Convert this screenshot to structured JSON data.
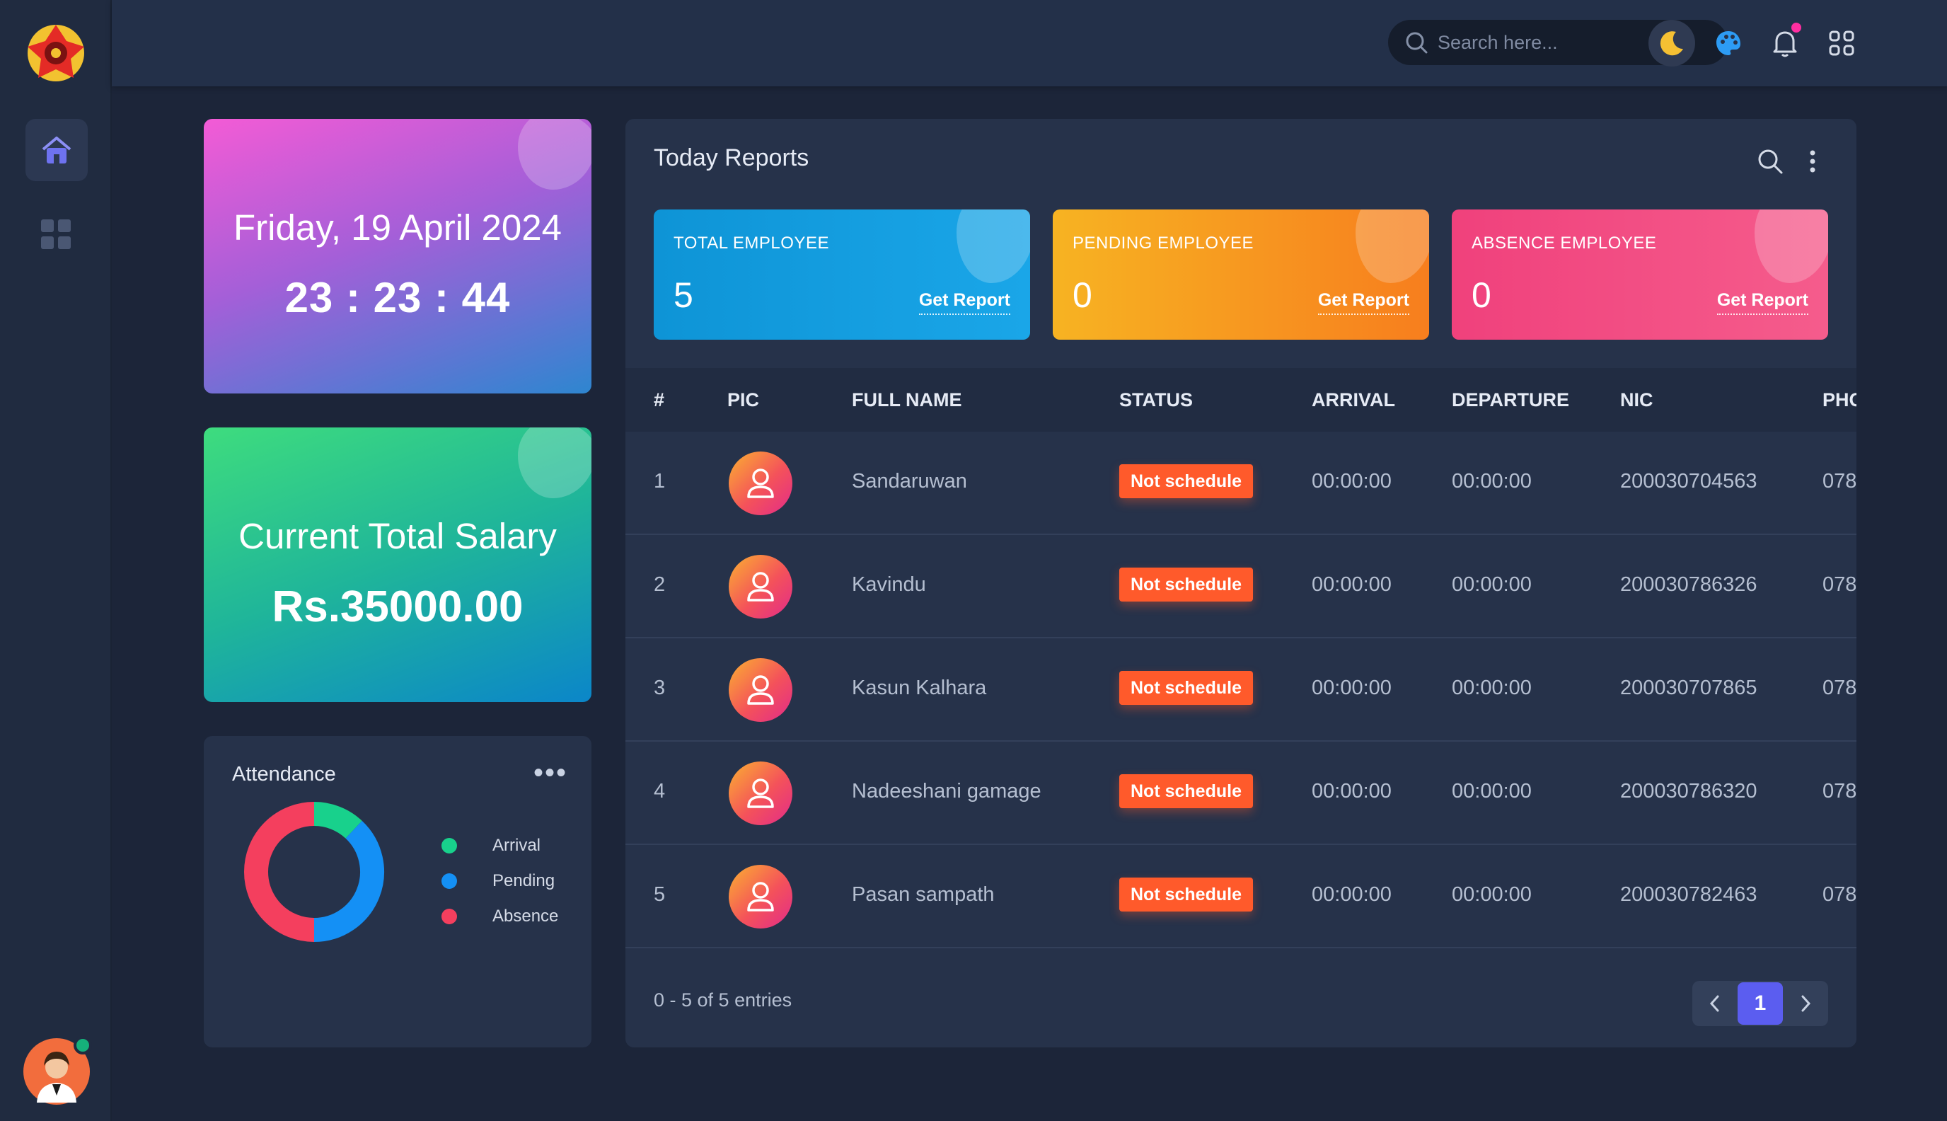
{
  "topbar": {
    "search_placeholder": "Search here...",
    "icons": [
      "moon-icon",
      "palette-icon",
      "bell-icon",
      "apps-icon"
    ]
  },
  "sidebar": {
    "items": [
      {
        "name": "home",
        "icon": "home-icon",
        "active": true
      },
      {
        "name": "dashboard",
        "icon": "grid-icon",
        "active": false
      }
    ]
  },
  "date_card": {
    "date": "Friday, 19 April 2024",
    "time": "23 : 23 : 44"
  },
  "salary_card": {
    "title": "Current Total Salary",
    "value": "Rs.35000.00"
  },
  "attendance": {
    "title": "Attendance",
    "chart_data": {
      "type": "pie",
      "categories": [
        "Arrival",
        "Pending",
        "Absence"
      ],
      "values": [
        12,
        38,
        50
      ],
      "colors": [
        "#18d18c",
        "#1490f5",
        "#f43f5e"
      ]
    }
  },
  "reports": {
    "title": "Today Reports",
    "stats": [
      {
        "label": "TOTAL EMPLOYEE",
        "value": "5",
        "link": "Get Report"
      },
      {
        "label": "PENDING EMPLOYEE",
        "value": "0",
        "link": "Get Report"
      },
      {
        "label": "ABSENCE EMPLOYEE",
        "value": "0",
        "link": "Get Report"
      }
    ],
    "columns": [
      "#",
      "PIC",
      "FULL NAME",
      "STATUS",
      "ARRIVAL",
      "DEPARTURE",
      "NIC",
      "PHO"
    ],
    "rows": [
      {
        "no": "1",
        "name": "Sandaruwan",
        "status": "Not schedule",
        "arrival": "00:00:00",
        "departure": "00:00:00",
        "nic": "200030704563",
        "phone": "078"
      },
      {
        "no": "2",
        "name": "Kavindu",
        "status": "Not schedule",
        "arrival": "00:00:00",
        "departure": "00:00:00",
        "nic": "200030786326",
        "phone": "078"
      },
      {
        "no": "3",
        "name": "Kasun Kalhara",
        "status": "Not schedule",
        "arrival": "00:00:00",
        "departure": "00:00:00",
        "nic": "200030707865",
        "phone": "078"
      },
      {
        "no": "4",
        "name": "Nadeeshani gamage",
        "status": "Not schedule",
        "arrival": "00:00:00",
        "departure": "00:00:00",
        "nic": "200030786320",
        "phone": "078"
      },
      {
        "no": "5",
        "name": "Pasan sampath",
        "status": "Not schedule",
        "arrival": "00:00:00",
        "departure": "00:00:00",
        "nic": "200030782463",
        "phone": "078"
      }
    ],
    "footer": "0 - 5 of 5 entries",
    "current_page": "1"
  }
}
